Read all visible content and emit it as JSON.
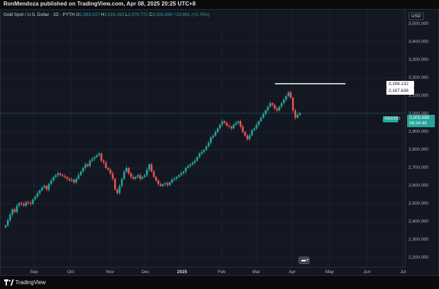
{
  "publisher_line": "RonMendoza published on TradingView.com, Apr 08, 2025 20:25 UTC+8",
  "legend": {
    "symbol": "Gold Spot / U.S. Dollar · 1D · PYTH",
    "o_label": "O",
    "o_value": "2,983.037",
    "h_label": "H",
    "h_value": "3,019.393",
    "l_label": "L",
    "l_value": "2,978.772",
    "c_label": "C",
    "c_value": "3,005.698",
    "change": "+22.661 (+0.76%)"
  },
  "currency_badge": "USD",
  "price_axis_labels": [
    "3,500.000",
    "3,400.000",
    "3,300.000",
    "3,200.000",
    "3,100.000",
    "3,000.000",
    "2,900.000",
    "2,800.000",
    "2,700.000",
    "2,600.000",
    "2,500.000",
    "2,400.000",
    "2,300.000",
    "2,200.000"
  ],
  "time_axis_labels": [
    "Sep",
    "Oct",
    "Nov",
    "Dec",
    "2025",
    "Feb",
    "Mar",
    "Apr",
    "May",
    "Jun",
    "Jul"
  ],
  "high_line_price_label": "3,168.132",
  "high_candle_price_label": "3,167.638",
  "symbol_tag": "XAUUSD",
  "current_price": "3,005.698",
  "countdown": "08:34:49",
  "footer_brand": "TradingView",
  "colors": {
    "up": "#26a69a",
    "down": "#ef5350",
    "background": "#131722",
    "grid": "#1e222d"
  },
  "chart_data": {
    "type": "candlestick",
    "y_range": [
      2150,
      3580
    ],
    "x_range": [
      "2024-08-01",
      "2025-07-01"
    ],
    "resistance_line": 3168.132,
    "close_line": 3005.698,
    "closes": [
      2380,
      2410,
      2440,
      2470,
      2455,
      2490,
      2505,
      2500,
      2490,
      2510,
      2505,
      2500,
      2525,
      2540,
      2560,
      2575,
      2590,
      2600,
      2580,
      2610,
      2630,
      2650,
      2660,
      2670,
      2660,
      2655,
      2650,
      2640,
      2630,
      2635,
      2620,
      2640,
      2660,
      2680,
      2700,
      2720,
      2710,
      2740,
      2750,
      2760,
      2770,
      2780,
      2740,
      2730,
      2700,
      2690,
      2670,
      2640,
      2580,
      2560,
      2600,
      2640,
      2680,
      2700,
      2670,
      2650,
      2640,
      2650,
      2660,
      2640,
      2650,
      2660,
      2690,
      2720,
      2680,
      2650,
      2630,
      2610,
      2600,
      2610,
      2615,
      2605,
      2620,
      2635,
      2640,
      2650,
      2660,
      2670,
      2680,
      2700,
      2710,
      2720,
      2730,
      2740,
      2760,
      2780,
      2790,
      2800,
      2820,
      2840,
      2870,
      2880,
      2900,
      2920,
      2940,
      2960,
      2950,
      2935,
      2930,
      2920,
      2940,
      2950,
      2960,
      2930,
      2900,
      2880,
      2860,
      2880,
      2910,
      2920,
      2940,
      2960,
      2980,
      3000,
      3020,
      3040,
      3060,
      3050,
      3030,
      3020,
      3040,
      3060,
      3080,
      3100,
      3120,
      3090,
      3020,
      2980,
      2995,
      3005.698
    ]
  }
}
